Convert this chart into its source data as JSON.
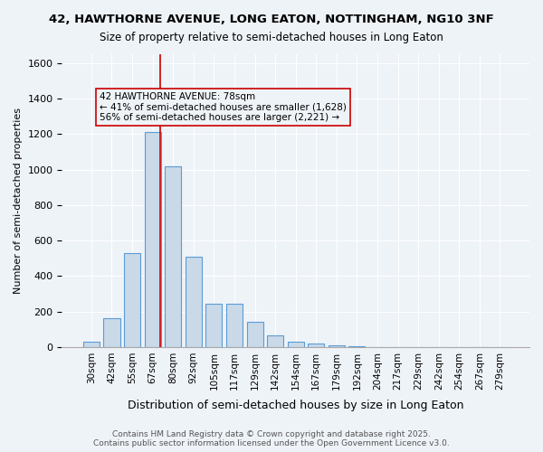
{
  "title1": "42, HAWTHORNE AVENUE, LONG EATON, NOTTINGHAM, NG10 3NF",
  "title2": "Size of property relative to semi-detached houses in Long Eaton",
  "xlabel": "Distribution of semi-detached houses by size in Long Eaton",
  "ylabel": "Number of semi-detached properties",
  "bin_labels": [
    "30sqm",
    "42sqm",
    "55sqm",
    "67sqm",
    "80sqm",
    "92sqm",
    "105sqm",
    "117sqm",
    "129sqm",
    "142sqm",
    "154sqm",
    "167sqm",
    "179sqm",
    "192sqm",
    "204sqm",
    "217sqm",
    "229sqm",
    "242sqm",
    "254sqm",
    "267sqm",
    "279sqm"
  ],
  "bin_values": [
    30,
    165,
    530,
    1210,
    1020,
    510,
    245,
    245,
    140,
    65,
    30,
    20,
    10,
    5,
    0,
    0,
    0,
    0,
    0,
    0,
    0
  ],
  "bar_color": "#c9d9e8",
  "bar_edge_color": "#5b9bd5",
  "property_label": "42 HAWTHORNE AVENUE: 78sqm",
  "smaller_pct": "41%",
  "smaller_count": "1,628",
  "larger_pct": "56%",
  "larger_count": "2,221",
  "annotation_box_color": "#cc0000",
  "vline_color": "#cc0000",
  "vline_x": 3.35,
  "background_color": "#eef3f8",
  "grid_color": "#ffffff",
  "footer_line1": "Contains HM Land Registry data © Crown copyright and database right 2025.",
  "footer_line2": "Contains public sector information licensed under the Open Government Licence v3.0.",
  "ylim": [
    0,
    1650
  ],
  "yticks": [
    0,
    200,
    400,
    600,
    800,
    1000,
    1200,
    1400,
    1600
  ]
}
